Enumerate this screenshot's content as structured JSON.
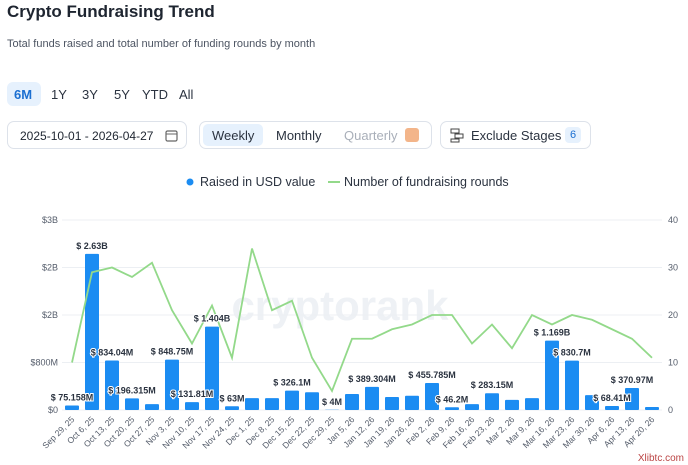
{
  "header": {
    "title": "Crypto Fundraising Trend",
    "subtitle": "Total funds raised and total number of funding rounds by month"
  },
  "periods": [
    "6M",
    "1Y",
    "3Y",
    "5Y",
    "YTD",
    "All"
  ],
  "active_period": "6M",
  "date_range": "2025-10-01 - 2026-04-27",
  "granularity": [
    "Weekly",
    "Monthly",
    "Quarterly"
  ],
  "active_granularity": "Weekly",
  "exclude_stages": {
    "label": "Exclude Stages",
    "count": 6
  },
  "watermark": "cryptorank",
  "corner_mark": "Xlibtc.com",
  "chart_data": {
    "type": "bar",
    "categories": [
      "Sep 29, 25",
      "Oct 6, 25",
      "Oct 13, 25",
      "Oct 20, 25",
      "Oct 27, 25",
      "Nov 3, 25",
      "Nov 10, 25",
      "Nov 17, 25",
      "Nov 24, 25",
      "Dec 1, 25",
      "Dec 8, 25",
      "Dec 15, 25",
      "Dec 22, 25",
      "Dec 29, 25",
      "Jan 5, 26",
      "Jan 12, 26",
      "Jan 19, 26",
      "Jan 26, 26",
      "Feb 2, 26",
      "Feb 9, 26",
      "Feb 16, 26",
      "Feb 23, 26",
      "Mar 2, 26",
      "Mar 9, 26",
      "Mar 16, 26",
      "Mar 23, 26",
      "Mar 30, 26",
      "Apr 6, 26",
      "Apr 13, 26",
      "Apr 20, 26"
    ],
    "series": [
      {
        "name": "Raised in USD value",
        "type": "bar",
        "color": "#1b8cf2",
        "values": [
          75158000,
          2630000000,
          834040000,
          196315000,
          100000000,
          848750000,
          131810000,
          1404000000,
          63000000,
          200000000,
          200000000,
          326100000,
          300000000,
          4000000,
          270000000,
          389304000,
          220000000,
          240000000,
          455785000,
          46200000,
          100000000,
          283150000,
          170000000,
          200000000,
          1169000000,
          830700000,
          250000000,
          68410000,
          370970000,
          50000000
        ],
        "value_labels": [
          "$ 75.158M",
          "$ 2.63B",
          "$ 834.04M",
          "$ 196.315M",
          null,
          "$ 848.75M",
          "$ 131.81M",
          "$ 1.404B",
          "$ 63M",
          null,
          null,
          "$ 326.1M",
          null,
          "$ 4M",
          null,
          "$ 389.304M",
          null,
          null,
          "$ 455.785M",
          "$ 46.2M",
          null,
          "$ 283.15M",
          null,
          null,
          "$ 1.169B",
          "$ 830.7M",
          null,
          "$ 68.41M",
          "$ 370.97M",
          null
        ]
      },
      {
        "name": "Number of fundraising rounds",
        "type": "line",
        "axis": "y2",
        "color": "#93d98a",
        "values": [
          10,
          29,
          30,
          28,
          31,
          21,
          14,
          22,
          11,
          34,
          21,
          23,
          11,
          4,
          15,
          15,
          17,
          18,
          20,
          20,
          14,
          18,
          13,
          20,
          18,
          20,
          19,
          17,
          15,
          11
        ]
      }
    ],
    "ylim": [
      0,
      3200000000
    ],
    "yticks": [
      {
        "value": 0,
        "label": "$0"
      },
      {
        "value": 800000000,
        "label": "$800M"
      },
      {
        "value": 1600000000,
        "label": "$2B"
      },
      {
        "value": 2400000000,
        "label": "$2B"
      },
      {
        "value": 3200000000,
        "label": "$3B"
      }
    ],
    "y2lim": [
      0,
      40
    ],
    "y2ticks": [
      0,
      10,
      20,
      30,
      40
    ],
    "legend": "top"
  }
}
